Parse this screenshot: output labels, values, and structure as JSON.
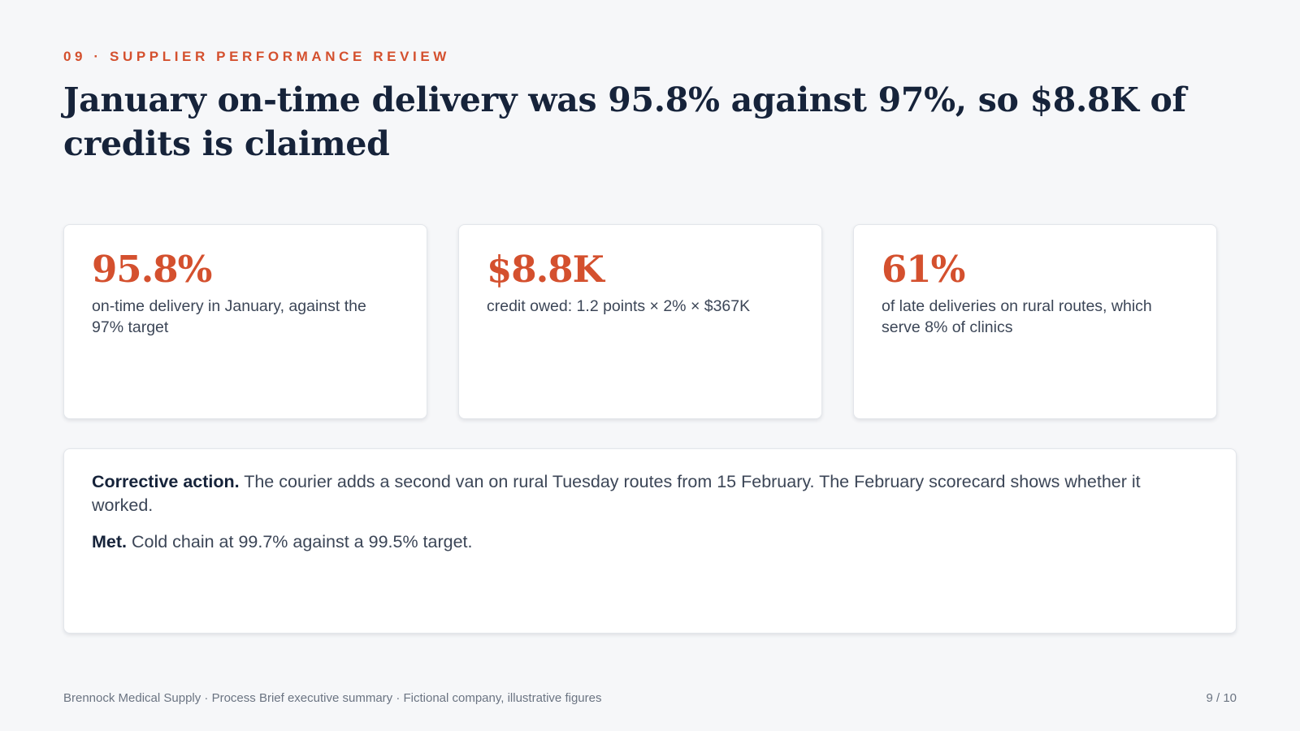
{
  "eyebrow": "09 · SUPPLIER PERFORMANCE REVIEW",
  "headline": "January on-time delivery was 95.8% against 97%, so $8.8K of credits is claimed",
  "cards": [
    {
      "value": "95.8%",
      "description": "on-time delivery in January, against the 97% target"
    },
    {
      "value": "$8.8K",
      "description": "credit owed: 1.2 points × 2% × $367K"
    },
    {
      "value": "61%",
      "description": "of late deliveries on rural routes, which serve 8% of clinics"
    }
  ],
  "notes": [
    {
      "label": "Corrective action.",
      "text": " The courier adds a second van on rural Tuesday routes from 15 February. The February scorecard shows whether it worked."
    },
    {
      "label": "Met.",
      "text": " Cold chain at 99.7% against a 99.5% target."
    }
  ],
  "footer": {
    "source": "Brennock Medical Supply · Process Brief executive summary · Fictional company, illustrative figures",
    "page": "9 / 10"
  },
  "colors": {
    "accent": "#d4502e",
    "heading": "#16233a",
    "body": "#3c4657",
    "background": "#f6f7f9"
  }
}
